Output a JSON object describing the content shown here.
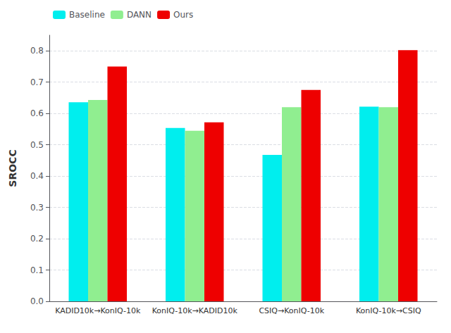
{
  "chart_data": {
    "type": "bar",
    "categories": [
      "KADID10k→KonIQ-10k",
      "KonIQ-10k→KADID10k",
      "CSIQ→KonIQ-10k",
      "KonIQ-10k→CSIQ"
    ],
    "series": [
      {
        "name": "Baseline",
        "color": "#00EEEE",
        "values": [
          0.636,
          0.554,
          0.468,
          0.622
        ]
      },
      {
        "name": "DANN",
        "color": "#90EE90",
        "values": [
          0.643,
          0.545,
          0.62,
          0.62
        ]
      },
      {
        "name": "Ours",
        "color": "#EE0000",
        "values": [
          0.75,
          0.572,
          0.675,
          0.802
        ]
      }
    ],
    "ylabel": "SROCC",
    "ylim": [
      0.0,
      0.85
    ],
    "yticks": [
      {
        "value": 0.0,
        "label": "0.0"
      },
      0.1,
      0.2,
      0.3,
      0.4,
      0.5,
      0.6,
      0.7,
      0.8
    ],
    "grid": true,
    "legend": "upper left"
  }
}
